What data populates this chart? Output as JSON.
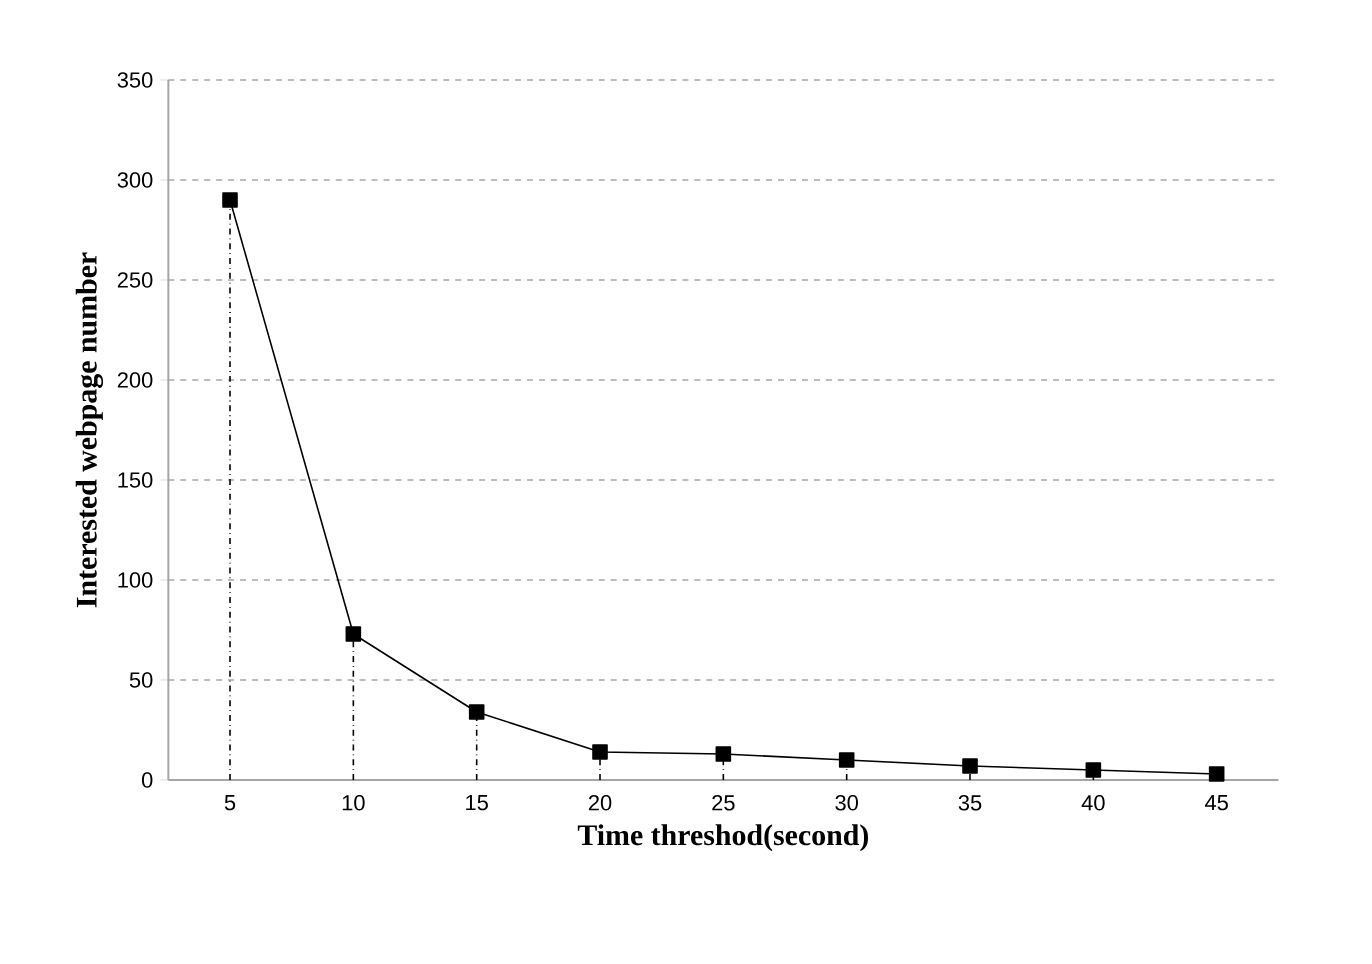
{
  "chart_data": {
    "type": "line",
    "xlabel": "Time threshod(second)",
    "ylabel": "Interested webpage  number",
    "categories": [
      "5",
      "10",
      "15",
      "20",
      "25",
      "30",
      "35",
      "40",
      "45"
    ],
    "series": [
      {
        "color": "#000000",
        "values": [
          290,
          73,
          34,
          14,
          13,
          10,
          7,
          5,
          3
        ],
        "line_style": "solid"
      },
      {
        "type": "lollipop",
        "color": "#000000",
        "values": [
          290,
          73,
          34,
          14,
          13,
          10,
          7,
          5,
          3
        ],
        "marker": "square",
        "line_style": "dashed"
      }
    ],
    "ylim": [
      0,
      350
    ],
    "yticks": [
      0,
      50,
      100,
      150,
      200,
      250,
      300,
      350
    ],
    "grid": "y"
  }
}
